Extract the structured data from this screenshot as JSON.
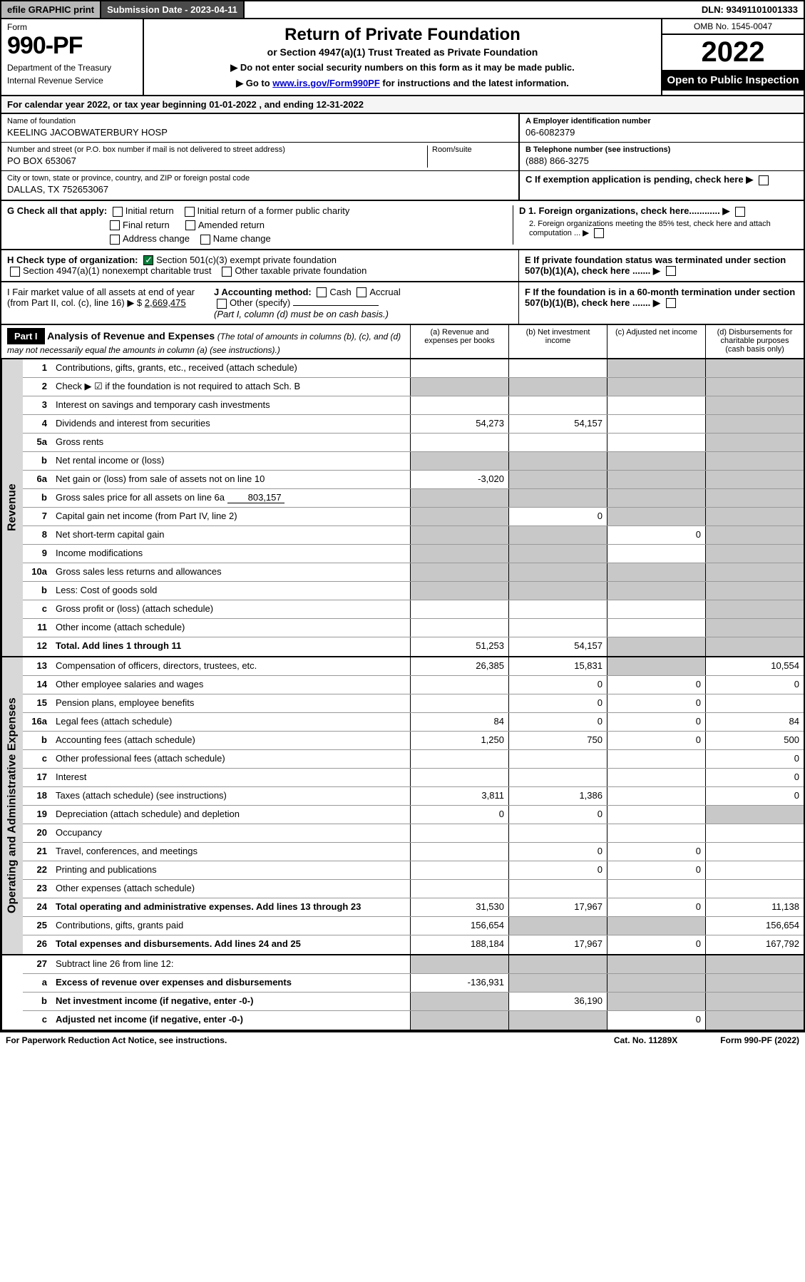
{
  "topbar": {
    "efile": "efile GRAPHIC print",
    "subdate_label": "Submission Date - ",
    "subdate_val": "2023-04-11",
    "dln_label": "DLN: ",
    "dln_val": "93491101001333"
  },
  "header": {
    "form_label": "Form",
    "form_num": "990-PF",
    "dept1": "Department of the Treasury",
    "dept2": "Internal Revenue Service",
    "title": "Return of Private Foundation",
    "subtitle": "or Section 4947(a)(1) Trust Treated as Private Foundation",
    "note1": "▶ Do not enter social security numbers on this form as it may be made public.",
    "note2_pre": "▶ Go to ",
    "note2_link": "www.irs.gov/Form990PF",
    "note2_post": " for instructions and the latest information.",
    "omb": "OMB No. 1545-0047",
    "year": "2022",
    "open_public": "Open to Public Inspection"
  },
  "calyear": {
    "text_pre": "For calendar year 2022, or tax year beginning ",
    "begin": "01-01-2022",
    "text_mid": " , and ending ",
    "end": "12-31-2022"
  },
  "info": {
    "name_lbl": "Name of foundation",
    "name_val": "KEELING JACOBWATERBURY HOSP",
    "ein_lbl": "A Employer identification number",
    "ein_val": "06-6082379",
    "addr_lbl": "Number and street (or P.O. box number if mail is not delivered to street address)",
    "addr_val": "PO BOX 653067",
    "room_lbl": "Room/suite",
    "phone_lbl": "B Telephone number (see instructions)",
    "phone_val": "(888) 866-3275",
    "city_lbl": "City or town, state or province, country, and ZIP or foreign postal code",
    "city_val": "DALLAS, TX  752653067",
    "c_lbl": "C If exemption application is pending, check here"
  },
  "checks": {
    "g_lbl": "G Check all that apply:",
    "initial": "Initial return",
    "initial_former": "Initial return of a former public charity",
    "final": "Final return",
    "amended": "Amended return",
    "addr_change": "Address change",
    "name_change": "Name change",
    "d1": "D 1. Foreign organizations, check here............",
    "d2": "2. Foreign organizations meeting the 85% test, check here and attach computation ...",
    "e": "E  If private foundation status was terminated under section 507(b)(1)(A), check here .......",
    "h_lbl": "H Check type of organization:",
    "h_501c3": "Section 501(c)(3) exempt private foundation",
    "h_4947": "Section 4947(a)(1) nonexempt charitable trust",
    "h_other": "Other taxable private foundation",
    "i_lbl": "I Fair market value of all assets at end of year (from Part II, col. (c), line 16) ▶ $",
    "i_val": "2,669,475",
    "j_lbl": "J Accounting method:",
    "j_cash": "Cash",
    "j_accrual": "Accrual",
    "j_other": "Other (specify)",
    "j_note": "(Part I, column (d) must be on cash basis.)",
    "f_lbl": "F  If the foundation is in a 60-month termination under section 507(b)(1)(B), check here ......."
  },
  "part1": {
    "label": "Part I",
    "title": "Analysis of Revenue and Expenses",
    "title_note": "(The total of amounts in columns (b), (c), and (d) may not necessarily equal the amounts in column (a) (see instructions).)",
    "col_a": "(a)  Revenue and expenses per books",
    "col_b": "(b)  Net investment income",
    "col_c": "(c)  Adjusted net income",
    "col_d": "(d)  Disbursements for charitable purposes (cash basis only)"
  },
  "side_revenue": "Revenue",
  "side_expenses": "Operating and Administrative Expenses",
  "rows": {
    "r1": {
      "n": "1",
      "d": "Contributions, gifts, grants, etc., received (attach schedule)"
    },
    "r2": {
      "n": "2",
      "d": "Check ▶ ☑ if the foundation is not required to attach Sch. B"
    },
    "r3": {
      "n": "3",
      "d": "Interest on savings and temporary cash investments"
    },
    "r4": {
      "n": "4",
      "d": "Dividends and interest from securities",
      "a": "54,273",
      "b": "54,157"
    },
    "r5a": {
      "n": "5a",
      "d": "Gross rents"
    },
    "r5b": {
      "n": "b",
      "d": "Net rental income or (loss)"
    },
    "r6a": {
      "n": "6a",
      "d": "Net gain or (loss) from sale of assets not on line 10",
      "a": "-3,020"
    },
    "r6b": {
      "n": "b",
      "d": "Gross sales price for all assets on line 6a",
      "inline": "803,157"
    },
    "r7": {
      "n": "7",
      "d": "Capital gain net income (from Part IV, line 2)",
      "b": "0"
    },
    "r8": {
      "n": "8",
      "d": "Net short-term capital gain",
      "c": "0"
    },
    "r9": {
      "n": "9",
      "d": "Income modifications"
    },
    "r10a": {
      "n": "10a",
      "d": "Gross sales less returns and allowances"
    },
    "r10b": {
      "n": "b",
      "d": "Less: Cost of goods sold"
    },
    "r10c": {
      "n": "c",
      "d": "Gross profit or (loss) (attach schedule)"
    },
    "r11": {
      "n": "11",
      "d": "Other income (attach schedule)"
    },
    "r12": {
      "n": "12",
      "d": "Total. Add lines 1 through 11",
      "a": "51,253",
      "b": "54,157",
      "bold": true
    },
    "r13": {
      "n": "13",
      "d": "Compensation of officers, directors, trustees, etc.",
      "a": "26,385",
      "b": "15,831",
      "d4": "10,554"
    },
    "r14": {
      "n": "14",
      "d": "Other employee salaries and wages",
      "b": "0",
      "c": "0",
      "d4": "0"
    },
    "r15": {
      "n": "15",
      "d": "Pension plans, employee benefits",
      "b": "0",
      "c": "0"
    },
    "r16a": {
      "n": "16a",
      "d": "Legal fees (attach schedule)",
      "a": "84",
      "b": "0",
      "c": "0",
      "d4": "84"
    },
    "r16b": {
      "n": "b",
      "d": "Accounting fees (attach schedule)",
      "a": "1,250",
      "b": "750",
      "c": "0",
      "d4": "500"
    },
    "r16c": {
      "n": "c",
      "d": "Other professional fees (attach schedule)",
      "d4": "0"
    },
    "r17": {
      "n": "17",
      "d": "Interest",
      "d4": "0"
    },
    "r18": {
      "n": "18",
      "d": "Taxes (attach schedule) (see instructions)",
      "a": "3,811",
      "b": "1,386",
      "d4": "0"
    },
    "r19": {
      "n": "19",
      "d": "Depreciation (attach schedule) and depletion",
      "a": "0",
      "b": "0"
    },
    "r20": {
      "n": "20",
      "d": "Occupancy"
    },
    "r21": {
      "n": "21",
      "d": "Travel, conferences, and meetings",
      "b": "0",
      "c": "0"
    },
    "r22": {
      "n": "22",
      "d": "Printing and publications",
      "b": "0",
      "c": "0"
    },
    "r23": {
      "n": "23",
      "d": "Other expenses (attach schedule)"
    },
    "r24": {
      "n": "24",
      "d": "Total operating and administrative expenses. Add lines 13 through 23",
      "a": "31,530",
      "b": "17,967",
      "c": "0",
      "d4": "11,138",
      "bold": true
    },
    "r25": {
      "n": "25",
      "d": "Contributions, gifts, grants paid",
      "a": "156,654",
      "d4": "156,654"
    },
    "r26": {
      "n": "26",
      "d": "Total expenses and disbursements. Add lines 24 and 25",
      "a": "188,184",
      "b": "17,967",
      "c": "0",
      "d4": "167,792",
      "bold": true
    },
    "r27": {
      "n": "27",
      "d": "Subtract line 26 from line 12:"
    },
    "r27a": {
      "n": "a",
      "d": "Excess of revenue over expenses and disbursements",
      "a": "-136,931",
      "bold": true
    },
    "r27b": {
      "n": "b",
      "d": "Net investment income (if negative, enter -0-)",
      "b": "36,190",
      "bold": true
    },
    "r27c": {
      "n": "c",
      "d": "Adjusted net income (if negative, enter -0-)",
      "c": "0",
      "bold": true
    }
  },
  "footer": {
    "left": "For Paperwork Reduction Act Notice, see instructions.",
    "mid": "Cat. No. 11289X",
    "right": "Form 990-PF (2022)"
  }
}
